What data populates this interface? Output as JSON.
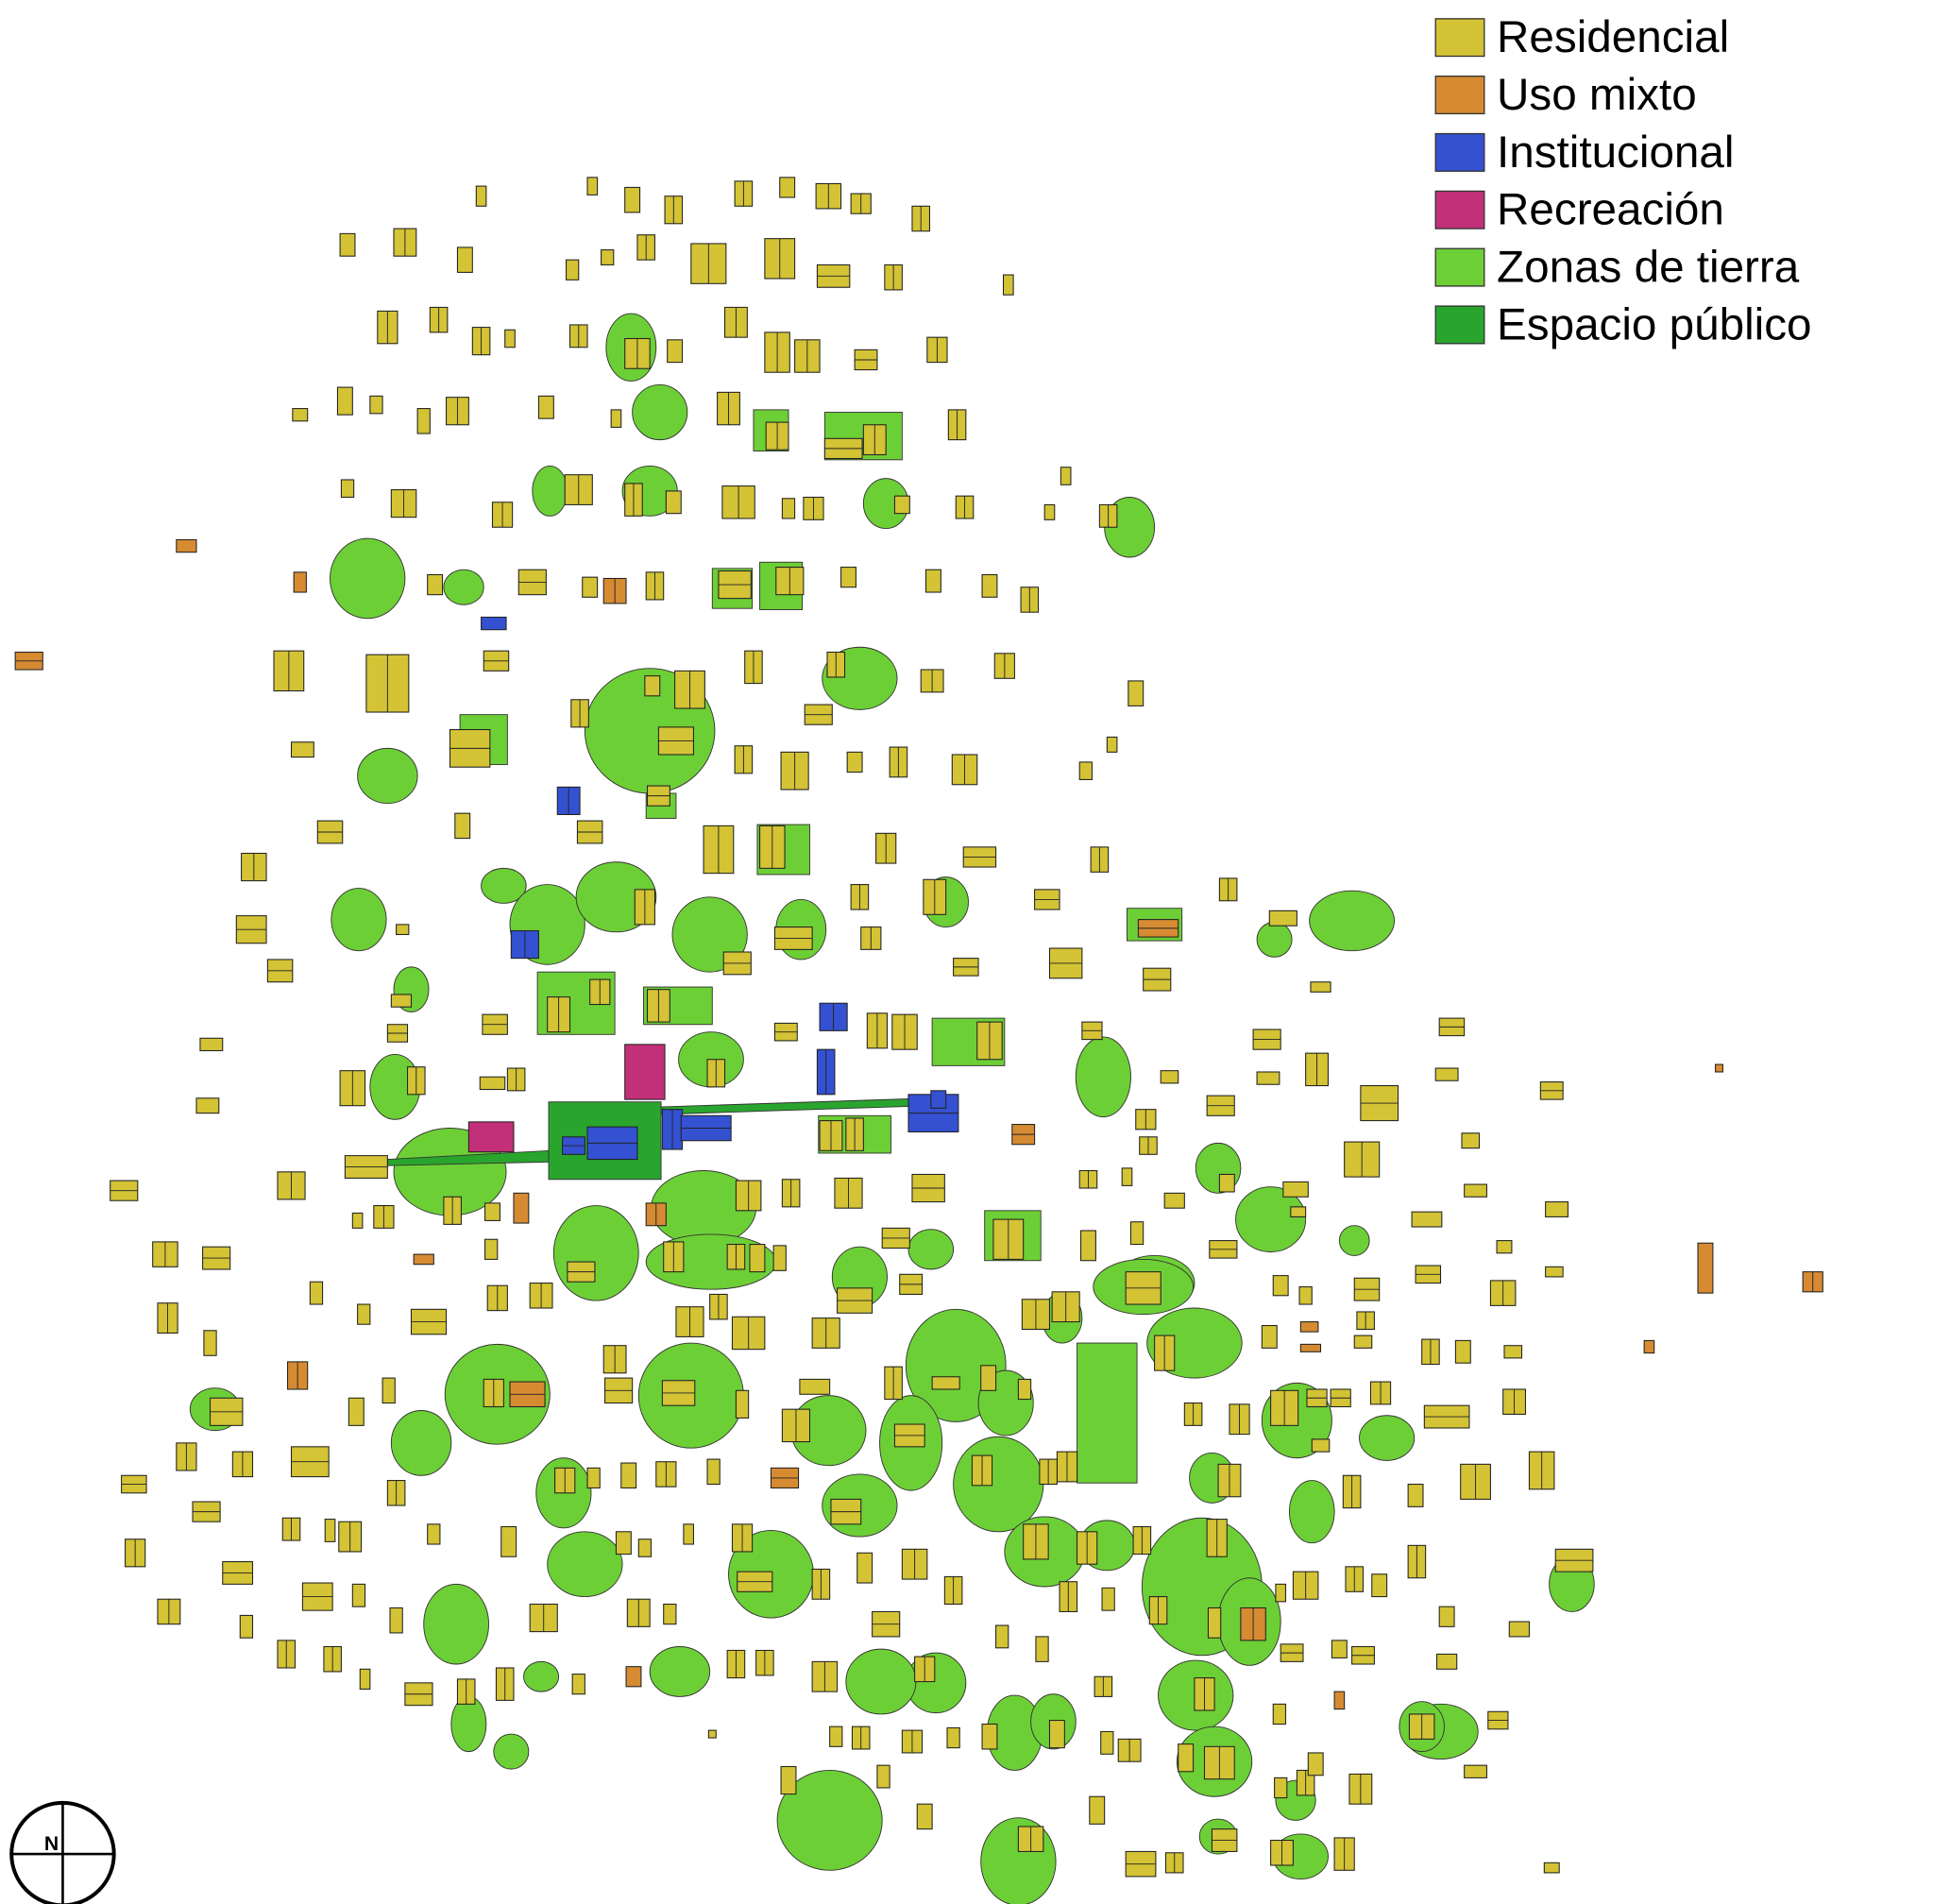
{
  "legend": {
    "items": [
      {
        "label": "Residencial",
        "color": "#d3c335"
      },
      {
        "label": "Uso mixto",
        "color": "#d68b32"
      },
      {
        "label": "Institucional",
        "color": "#3451d1"
      },
      {
        "label": "Recreación",
        "color": "#c3307a"
      },
      {
        "label": "Zonas de tierra",
        "color": "#6dcf36"
      },
      {
        "label": "Espacio público",
        "color": "#29a52e"
      }
    ]
  },
  "compass": {
    "label": "N"
  }
}
